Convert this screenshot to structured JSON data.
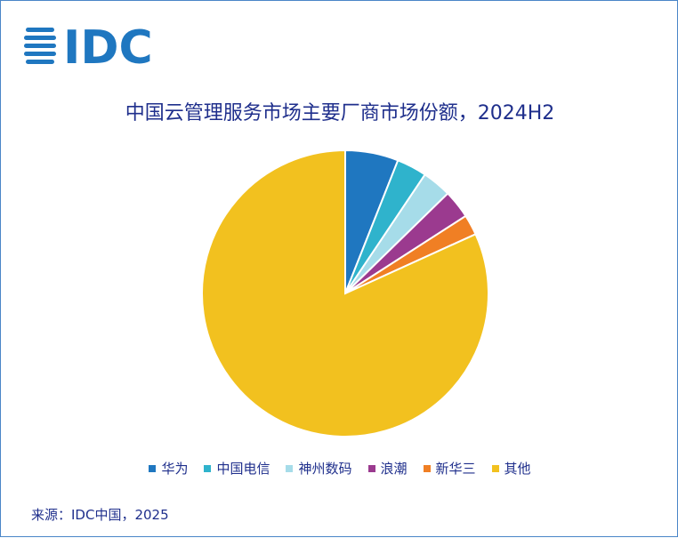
{
  "logo_text": "IDC",
  "source": "来源：IDC中国，2025",
  "colors": {
    "华为": "#1f77c0",
    "中国电信": "#2fb3cc",
    "神州数码": "#a6dce9",
    "浪潮": "#9b3a8f",
    "新华三": "#f07f24",
    "其他": "#f2c11f"
  },
  "chart_data": {
    "type": "pie",
    "title": "中国云管理服务市场主要厂商市场份额，2024H2",
    "legend_position": "bottom",
    "series": [
      {
        "name": "华为",
        "value": 6.0
      },
      {
        "name": "中国电信",
        "value": 3.4
      },
      {
        "name": "神州数码",
        "value": 3.3
      },
      {
        "name": "浪潮",
        "value": 3.2
      },
      {
        "name": "新华三",
        "value": 2.3
      },
      {
        "name": "其他",
        "value": 81.8
      }
    ]
  }
}
